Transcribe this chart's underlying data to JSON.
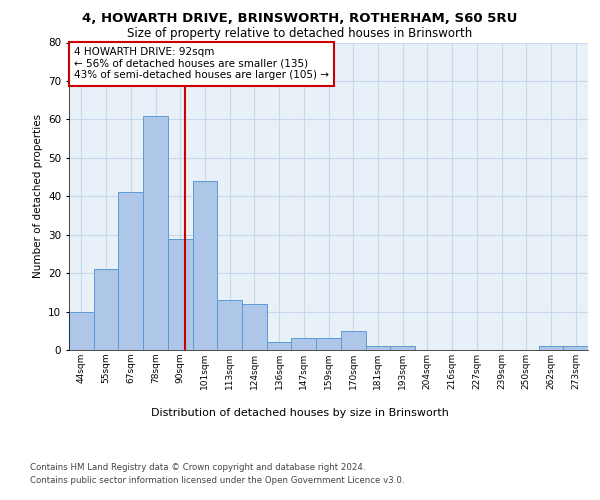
{
  "title_line1": "4, HOWARTH DRIVE, BRINSWORTH, ROTHERHAM, S60 5RU",
  "title_line2": "Size of property relative to detached houses in Brinsworth",
  "xlabel": "Distribution of detached houses by size in Brinsworth",
  "ylabel": "Number of detached properties",
  "categories": [
    "44sqm",
    "55sqm",
    "67sqm",
    "78sqm",
    "90sqm",
    "101sqm",
    "113sqm",
    "124sqm",
    "136sqm",
    "147sqm",
    "159sqm",
    "170sqm",
    "181sqm",
    "193sqm",
    "204sqm",
    "216sqm",
    "227sqm",
    "239sqm",
    "250sqm",
    "262sqm",
    "273sqm"
  ],
  "values": [
    10,
    21,
    41,
    61,
    29,
    44,
    13,
    12,
    2,
    3,
    3,
    5,
    1,
    1,
    0,
    0,
    0,
    0,
    0,
    1,
    1
  ],
  "bar_color": "#aec6e8",
  "bar_edge_color": "#5b9bd5",
  "reference_line_color": "#cc0000",
  "annotation_text": "4 HOWARTH DRIVE: 92sqm\n← 56% of detached houses are smaller (135)\n43% of semi-detached houses are larger (105) →",
  "annotation_box_color": "#ffffff",
  "annotation_box_edge_color": "#cc0000",
  "ylim": [
    0,
    80
  ],
  "yticks": [
    0,
    10,
    20,
    30,
    40,
    50,
    60,
    70,
    80
  ],
  "grid_color": "#c8d8ea",
  "background_color": "#e8f0f8",
  "footer_line1": "Contains HM Land Registry data © Crown copyright and database right 2024.",
  "footer_line2": "Contains public sector information licensed under the Open Government Licence v3.0."
}
